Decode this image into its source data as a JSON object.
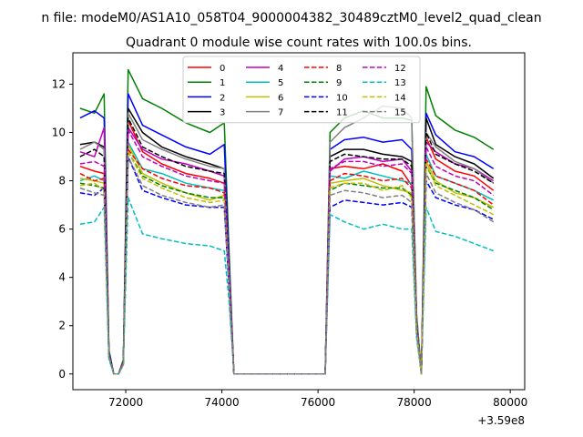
{
  "figure": {
    "suptitle": "n file: modeM0/AS1A10_058T04_9000004382_30489cztM0_level2_quad_clean",
    "title": "Quadrant 0 module wise count rates with 100.0s bins.",
    "x_offset_label": "+3.59e8"
  },
  "chart_data": {
    "type": "line",
    "title": "Quadrant 0 module wise count rates with 100.0s bins.",
    "xlabel": "",
    "ylabel": "",
    "x_offset": 359000000,
    "xlim": [
      70900,
      80300
    ],
    "ylim": [
      -0.65,
      13.3
    ],
    "xticks": [
      72000,
      74000,
      76000,
      78000,
      80000
    ],
    "yticks": [
      0,
      2,
      4,
      6,
      8,
      10,
      12
    ],
    "xtick_labels": [
      "72000",
      "74000",
      "76000",
      "78000",
      "80000"
    ],
    "ytick_labels": [
      "0",
      "2",
      "4",
      "6",
      "8",
      "10",
      "12"
    ],
    "grid": false,
    "legend": {
      "placement": "top-center",
      "columns": 4
    },
    "x": [
      71050,
      71350,
      71550,
      71650,
      71750,
      71850,
      71950,
      72050,
      72350,
      72750,
      73250,
      73750,
      74050,
      74150,
      74250,
      75200,
      76150,
      76250,
      76550,
      76950,
      77350,
      77750,
      77950,
      78050,
      78150,
      78250,
      78450,
      78850,
      79250,
      79650
    ],
    "series": [
      {
        "name": "0",
        "color": "#ff0000",
        "linestyle": "solid",
        "values": [
          8.6,
          8.4,
          8.3,
          0.8,
          0.0,
          0.0,
          0.5,
          10.5,
          9.2,
          8.7,
          8.3,
          8.1,
          7.9,
          4.0,
          0.0,
          0.0,
          0.0,
          8.5,
          8.6,
          8.5,
          8.7,
          8.4,
          7.8,
          2.0,
          0.0,
          9.8,
          8.9,
          8.4,
          8.2,
          7.6
        ]
      },
      {
        "name": "1",
        "color": "#008000",
        "linestyle": "solid",
        "values": [
          11.0,
          10.8,
          11.6,
          1.0,
          0.0,
          0.0,
          0.6,
          12.6,
          11.4,
          11.0,
          10.4,
          10.0,
          10.4,
          5.0,
          0.0,
          0.0,
          0.0,
          10.0,
          10.6,
          10.9,
          10.6,
          10.6,
          10.5,
          2.5,
          0.0,
          11.9,
          10.7,
          10.1,
          9.8,
          9.3
        ]
      },
      {
        "name": "2",
        "color": "#0000ff",
        "linestyle": "solid",
        "values": [
          10.6,
          10.9,
          10.6,
          0.9,
          0.0,
          0.0,
          0.5,
          11.6,
          10.3,
          9.9,
          9.4,
          9.1,
          9.5,
          4.6,
          0.0,
          0.0,
          0.0,
          9.3,
          9.7,
          9.8,
          9.6,
          9.7,
          9.3,
          2.3,
          0.0,
          10.8,
          9.9,
          9.2,
          9.0,
          8.5
        ]
      },
      {
        "name": "3",
        "color": "#000000",
        "linestyle": "solid",
        "values": [
          9.5,
          9.6,
          9.4,
          0.8,
          0.0,
          0.0,
          0.5,
          11.0,
          10.0,
          9.4,
          9.0,
          8.7,
          8.5,
          4.2,
          0.0,
          0.0,
          0.0,
          9.0,
          9.3,
          9.3,
          9.1,
          9.0,
          8.8,
          2.1,
          0.0,
          10.6,
          9.5,
          9.0,
          8.7,
          8.1
        ]
      },
      {
        "name": "4",
        "color": "#bf00bf",
        "linestyle": "solid",
        "values": [
          9.2,
          9.0,
          10.2,
          0.8,
          0.0,
          0.0,
          0.5,
          10.2,
          9.3,
          8.9,
          8.7,
          8.4,
          8.2,
          4.1,
          0.0,
          0.0,
          0.0,
          8.4,
          8.9,
          9.0,
          8.8,
          8.9,
          8.4,
          2.1,
          0.0,
          9.6,
          9.2,
          8.7,
          8.5,
          8.0
        ]
      },
      {
        "name": "5",
        "color": "#00bfbf",
        "linestyle": "solid",
        "values": [
          8.0,
          8.2,
          8.0,
          0.7,
          0.0,
          0.0,
          0.5,
          9.6,
          8.5,
          8.3,
          7.9,
          7.7,
          7.6,
          3.8,
          0.0,
          0.0,
          0.0,
          8.2,
          8.1,
          8.4,
          8.2,
          8.0,
          7.9,
          1.9,
          0.0,
          9.1,
          8.2,
          7.9,
          7.6,
          7.2
        ]
      },
      {
        "name": "6",
        "color": "#bfbf00",
        "linestyle": "solid",
        "values": [
          8.1,
          8.0,
          7.9,
          0.7,
          0.0,
          0.0,
          0.4,
          9.5,
          8.3,
          7.9,
          7.5,
          7.2,
          7.4,
          3.6,
          0.0,
          0.0,
          0.0,
          7.9,
          8.0,
          8.1,
          7.8,
          7.6,
          7.5,
          1.8,
          0.0,
          8.8,
          8.0,
          7.5,
          7.3,
          6.9
        ]
      },
      {
        "name": "7",
        "color": "#808080",
        "linestyle": "solid",
        "values": [
          9.3,
          9.6,
          9.3,
          0.8,
          0.0,
          0.0,
          0.5,
          10.8,
          9.7,
          9.3,
          8.9,
          8.6,
          8.5,
          4.2,
          0.0,
          0.0,
          0.0,
          9.6,
          10.2,
          10.6,
          11.1,
          11.0,
          10.6,
          2.4,
          0.0,
          10.0,
          9.4,
          8.8,
          8.5,
          7.9
        ]
      },
      {
        "name": "8",
        "color": "#ff0000",
        "linestyle": "dashed",
        "values": [
          8.3,
          8.0,
          8.1,
          0.7,
          0.0,
          0.0,
          0.4,
          9.3,
          8.5,
          8.1,
          7.8,
          7.7,
          7.5,
          3.8,
          0.0,
          0.0,
          0.0,
          8.0,
          8.3,
          8.2,
          8.0,
          8.1,
          7.7,
          1.9,
          0.0,
          8.9,
          8.2,
          7.9,
          7.6,
          7.0
        ]
      },
      {
        "name": "9",
        "color": "#008000",
        "linestyle": "dashed",
        "values": [
          7.9,
          7.8,
          7.7,
          0.7,
          0.0,
          0.0,
          0.4,
          9.2,
          8.2,
          7.8,
          7.5,
          7.3,
          7.3,
          3.7,
          0.0,
          0.0,
          0.0,
          7.6,
          7.9,
          7.8,
          7.7,
          7.7,
          7.4,
          1.8,
          0.0,
          8.6,
          7.9,
          7.6,
          7.3,
          6.8
        ]
      },
      {
        "name": "10",
        "color": "#0000ff",
        "linestyle": "dashed",
        "values": [
          7.5,
          7.4,
          7.7,
          0.7,
          0.0,
          0.0,
          0.4,
          9.0,
          7.6,
          7.3,
          7.0,
          6.9,
          6.9,
          3.5,
          0.0,
          0.0,
          0.0,
          6.9,
          7.2,
          7.1,
          7.0,
          7.1,
          6.9,
          1.7,
          0.0,
          8.0,
          7.3,
          7.0,
          6.8,
          6.4
        ]
      },
      {
        "name": "11",
        "color": "#000000",
        "linestyle": "dashed",
        "values": [
          9.0,
          9.3,
          9.0,
          0.8,
          0.0,
          0.0,
          0.5,
          10.6,
          9.4,
          9.0,
          8.6,
          8.4,
          8.3,
          4.1,
          0.0,
          0.0,
          0.0,
          8.8,
          9.1,
          9.0,
          8.9,
          8.9,
          8.6,
          2.1,
          0.0,
          10.0,
          9.1,
          8.7,
          8.4,
          7.9
        ]
      },
      {
        "name": "12",
        "color": "#bf00bf",
        "linestyle": "dashed",
        "values": [
          8.7,
          8.8,
          8.6,
          0.8,
          0.0,
          0.0,
          0.5,
          10.1,
          9.0,
          8.6,
          8.2,
          8.0,
          7.9,
          4.0,
          0.0,
          0.0,
          0.0,
          8.5,
          8.8,
          8.8,
          8.6,
          8.7,
          8.3,
          2.0,
          0.0,
          9.4,
          8.6,
          8.2,
          8.0,
          7.4
        ]
      },
      {
        "name": "13",
        "color": "#00bfbf",
        "linestyle": "dashed",
        "values": [
          6.2,
          6.3,
          6.9,
          0.6,
          0.0,
          0.0,
          0.4,
          7.3,
          5.8,
          5.6,
          5.4,
          5.3,
          5.1,
          3.0,
          0.0,
          0.0,
          0.0,
          6.6,
          6.3,
          6.0,
          6.2,
          6.0,
          6.0,
          1.5,
          0.0,
          6.9,
          5.9,
          5.7,
          5.4,
          5.1
        ]
      },
      {
        "name": "14",
        "color": "#bfbf00",
        "linestyle": "dashed",
        "values": [
          7.8,
          7.9,
          7.6,
          0.7,
          0.0,
          0.0,
          0.4,
          9.2,
          8.1,
          7.7,
          7.3,
          7.1,
          7.2,
          3.7,
          0.0,
          0.0,
          0.0,
          7.7,
          7.9,
          7.9,
          7.6,
          7.8,
          7.3,
          1.8,
          0.0,
          8.7,
          7.8,
          7.4,
          7.0,
          6.6
        ]
      },
      {
        "name": "15",
        "color": "#808080",
        "linestyle": "dashed",
        "values": [
          7.7,
          7.5,
          7.4,
          0.7,
          0.0,
          0.0,
          0.4,
          9.0,
          7.8,
          7.4,
          7.1,
          6.9,
          7.0,
          3.6,
          0.0,
          0.0,
          0.0,
          7.4,
          7.6,
          7.5,
          7.3,
          7.4,
          7.1,
          1.8,
          0.0,
          8.3,
          7.5,
          7.1,
          6.8,
          6.3
        ]
      }
    ]
  }
}
